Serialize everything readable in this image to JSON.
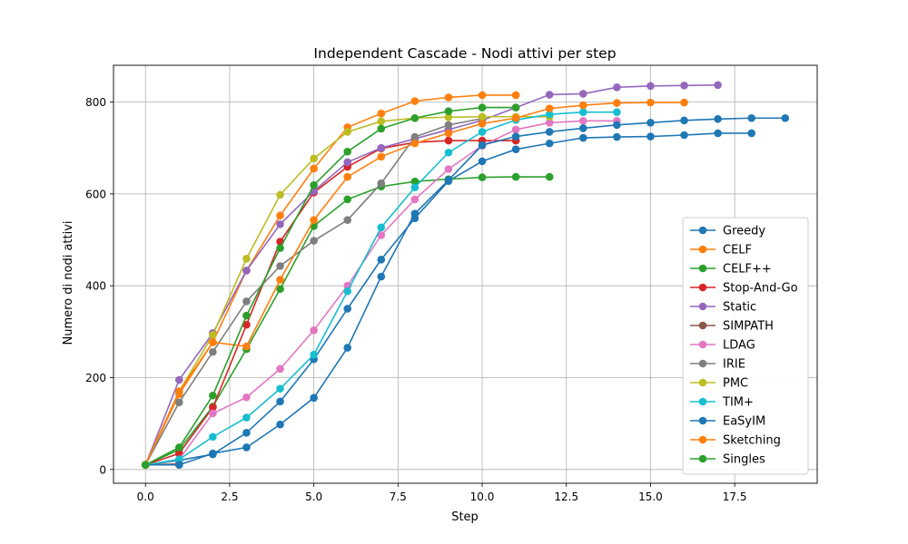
{
  "chart_data": {
    "type": "line",
    "title": "Independent Cascade - Nodi attivi per step",
    "xlabel": "Step",
    "ylabel": "Numero di nodi attivi",
    "xlim": [
      -0.95,
      19.95
    ],
    "ylim": [
      -30,
      880
    ],
    "xticks": [
      0,
      2.5,
      5,
      7.5,
      10,
      12.5,
      15,
      17.5
    ],
    "xtick_labels": [
      "0.0",
      "2.5",
      "5.0",
      "7.5",
      "10.0",
      "12.5",
      "15.0",
      "17.5"
    ],
    "yticks": [
      0,
      200,
      400,
      600,
      800
    ],
    "ytick_labels": [
      "0",
      "200",
      "400",
      "600",
      "800"
    ],
    "grid": true,
    "legend_position": "lower right",
    "series": [
      {
        "name": "Greedy",
        "color": "#1f77b4",
        "x": [
          0,
          1,
          2,
          3,
          4,
          5,
          6,
          7,
          8,
          9,
          10,
          11,
          12,
          13,
          14,
          15,
          16,
          17,
          18,
          19
        ],
        "y": [
          10,
          20,
          33,
          80,
          148,
          240,
          350,
          457,
          547,
          628,
          671,
          697,
          710,
          722,
          724,
          725,
          728,
          732,
          732,
          null
        ]
      },
      {
        "name": "CELF",
        "color": "#ff7f0e",
        "x": [
          0,
          1,
          2,
          3,
          4,
          5,
          6,
          7,
          8,
          9,
          10,
          11,
          12,
          13,
          14,
          15,
          16
        ],
        "y": [
          10,
          164,
          277,
          433,
          553,
          655,
          745,
          775,
          802,
          810,
          815,
          815,
          null,
          null,
          null,
          null,
          null
        ]
      },
      {
        "name": "CELF++",
        "color": "#2ca02c",
        "x": [
          0,
          1,
          2,
          3,
          4,
          5,
          6,
          7,
          8,
          9,
          10,
          11,
          12
        ],
        "y": [
          10,
          43,
          137,
          262,
          393,
          530,
          588,
          616,
          627,
          632,
          636,
          637,
          637
        ]
      },
      {
        "name": "Stop-And-Go",
        "color": "#d62728",
        "x": [
          0,
          1,
          2,
          3,
          4,
          5,
          6,
          7,
          8,
          9,
          10,
          11
        ],
        "y": [
          10,
          35,
          135,
          315,
          496,
          603,
          659,
          699,
          712,
          716,
          716,
          716
        ]
      },
      {
        "name": "Static",
        "color": "#9467bd",
        "x": [
          0,
          1,
          2,
          3,
          4,
          5,
          6,
          7,
          8,
          9,
          10,
          11,
          12,
          13,
          14,
          15,
          16,
          17
        ],
        "y": [
          10,
          195,
          297,
          433,
          534,
          606,
          669,
          700,
          720,
          740,
          760,
          788,
          816,
          818,
          832,
          835,
          836,
          837
        ]
      },
      {
        "name": "SIMPATH",
        "color": "#8c564b",
        "x": [
          0,
          1
        ],
        "y": [
          10,
          12
        ]
      },
      {
        "name": "LDAG",
        "color": "#e377c2",
        "x": [
          0,
          1,
          2,
          3,
          4,
          5,
          6,
          7,
          8,
          9,
          10,
          11,
          12,
          13,
          14
        ],
        "y": [
          10,
          22,
          122,
          157,
          219,
          303,
          400,
          510,
          588,
          654,
          705,
          740,
          755,
          759,
          759
        ]
      },
      {
        "name": "IRIE",
        "color": "#7f7f7f",
        "x": [
          0,
          1,
          2,
          3,
          4,
          5,
          6,
          7,
          8,
          9,
          10
        ],
        "y": [
          10,
          146,
          256,
          366,
          443,
          498,
          543,
          623,
          724,
          750,
          764
        ]
      },
      {
        "name": "PMC",
        "color": "#bcbd22",
        "x": [
          0,
          1,
          2,
          3,
          4,
          5,
          6,
          7,
          8,
          9,
          10,
          11,
          12
        ],
        "y": [
          10,
          170,
          293,
          459,
          598,
          677,
          735,
          758,
          765,
          767,
          768,
          768,
          768
        ]
      },
      {
        "name": "TIM+",
        "color": "#17becf",
        "x": [
          0,
          1,
          2,
          3,
          4,
          5,
          6,
          7,
          8,
          9,
          10,
          11,
          12,
          13,
          14
        ],
        "y": [
          10,
          22,
          71,
          113,
          176,
          250,
          388,
          527,
          614,
          690,
          735,
          761,
          773,
          778,
          778
        ]
      },
      {
        "name": "EaSyIM",
        "color": "#1f77b4",
        "x": [
          0,
          1,
          2,
          3,
          4,
          5,
          6,
          7,
          8,
          9,
          10,
          11,
          12,
          13,
          14,
          15,
          16,
          17,
          18,
          19
        ],
        "y": [
          10,
          10,
          35,
          48,
          98,
          156,
          265,
          420,
          557,
          630,
          706,
          725,
          735,
          743,
          750,
          755,
          760,
          763,
          765,
          765
        ]
      },
      {
        "name": "Sketching",
        "color": "#ff7f0e",
        "x": [
          0,
          1,
          2,
          3,
          4,
          5,
          6,
          7,
          8,
          9,
          10,
          11,
          12,
          13,
          14,
          15,
          16
        ],
        "y": [
          10,
          170,
          277,
          268,
          413,
          543,
          637,
          681,
          710,
          732,
          753,
          765,
          786,
          793,
          798,
          799,
          799
        ]
      },
      {
        "name": "Singles",
        "color": "#2ca02c",
        "x": [
          0,
          1,
          2,
          3,
          4,
          5,
          6,
          7,
          8,
          9,
          10,
          11,
          12
        ],
        "y": [
          10,
          48,
          161,
          335,
          482,
          619,
          692,
          742,
          765,
          780,
          788,
          788,
          null
        ]
      }
    ]
  }
}
